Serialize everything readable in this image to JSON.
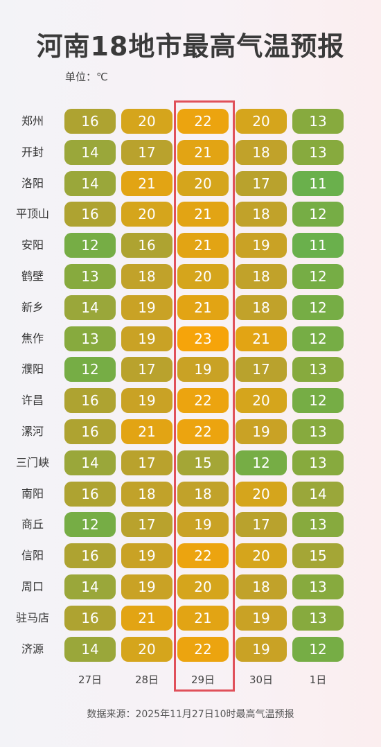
{
  "title": "河南18地市最高气温预报",
  "unit": "单位：℃",
  "source": "数据来源：2025年11月27日10时最高气温预报",
  "highlight_column": 2,
  "colors": {
    "t11": "#6ab04c",
    "t12": "#76ad45",
    "t13": "#87aa3e",
    "t14": "#9aa73a",
    "t15": "#a4a636",
    "t16": "#aea331",
    "t17": "#b9a22d",
    "t18": "#c1a22a",
    "t19": "#c9a225",
    "t20": "#d5a51c",
    "t21": "#e2a414",
    "t22": "#eca40f",
    "t23": "#f6a40a",
    "highlight_border": "#e0505a"
  },
  "chart_data": {
    "type": "heatmap",
    "title": "河南18地市最高气温预报",
    "unit": "℃",
    "columns": [
      "27日",
      "28日",
      "29日",
      "30日",
      "1日"
    ],
    "rows": [
      {
        "city": "郑州",
        "values": [
          16,
          20,
          22,
          20,
          13
        ]
      },
      {
        "city": "开封",
        "values": [
          14,
          17,
          21,
          18,
          13
        ]
      },
      {
        "city": "洛阳",
        "values": [
          14,
          21,
          20,
          17,
          11
        ]
      },
      {
        "city": "平顶山",
        "values": [
          16,
          20,
          21,
          18,
          12
        ]
      },
      {
        "city": "安阳",
        "values": [
          12,
          16,
          21,
          19,
          11
        ]
      },
      {
        "city": "鹤壁",
        "values": [
          13,
          18,
          20,
          18,
          12
        ]
      },
      {
        "city": "新乡",
        "values": [
          14,
          19,
          21,
          18,
          12
        ]
      },
      {
        "city": "焦作",
        "values": [
          13,
          19,
          23,
          21,
          12
        ]
      },
      {
        "city": "濮阳",
        "values": [
          12,
          17,
          19,
          17,
          13
        ]
      },
      {
        "city": "许昌",
        "values": [
          16,
          19,
          22,
          20,
          12
        ]
      },
      {
        "city": "漯河",
        "values": [
          16,
          21,
          22,
          19,
          13
        ]
      },
      {
        "city": "三门峡",
        "values": [
          14,
          17,
          15,
          12,
          13
        ]
      },
      {
        "city": "南阳",
        "values": [
          16,
          18,
          18,
          20,
          14
        ]
      },
      {
        "city": "商丘",
        "values": [
          12,
          17,
          19,
          17,
          13
        ]
      },
      {
        "city": "信阳",
        "values": [
          16,
          19,
          22,
          20,
          15
        ]
      },
      {
        "city": "周口",
        "values": [
          14,
          19,
          20,
          18,
          13
        ]
      },
      {
        "city": "驻马店",
        "values": [
          16,
          21,
          21,
          19,
          13
        ]
      },
      {
        "city": "济源",
        "values": [
          14,
          20,
          22,
          19,
          12
        ]
      }
    ]
  }
}
